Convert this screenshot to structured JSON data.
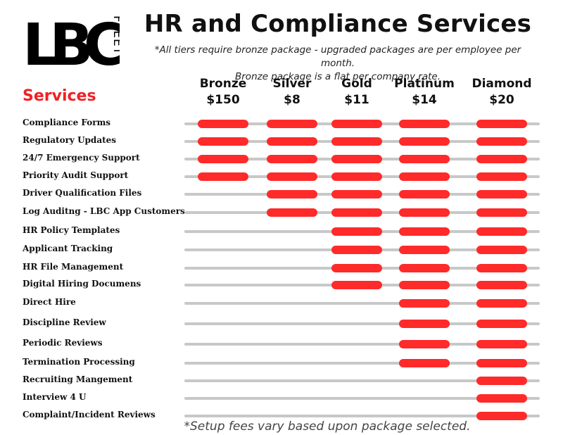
{
  "brand": {
    "logo_text": "LBC",
    "logo_subtext": "FLEET",
    "colors": {
      "accent": "#ee2226",
      "bar": "#ff2a2a",
      "track": "#c8c8c8",
      "logo_black": "#000000"
    }
  },
  "header": {
    "title": "HR and Compliance Services",
    "subtitle_line1": "*All tiers require bronze package - upgraded packages are per employee per month.",
    "subtitle_line2": "Bronze package is a flat per company rate."
  },
  "services_heading": "Services",
  "tiers": [
    {
      "name": "Bronze",
      "price": "$150"
    },
    {
      "name": "Silver",
      "price": "$8"
    },
    {
      "name": "Gold",
      "price": "$11"
    },
    {
      "name": "Platinum",
      "price": "$14"
    },
    {
      "name": "Diamond",
      "price": "$20"
    }
  ],
  "services": [
    {
      "label": "Compliance Forms",
      "tiers_included": [
        true,
        true,
        true,
        true,
        true
      ]
    },
    {
      "label": "Regulatory Updates",
      "tiers_included": [
        true,
        true,
        true,
        true,
        true
      ]
    },
    {
      "label": "24/7 Emergency Support",
      "tiers_included": [
        true,
        true,
        true,
        true,
        true
      ]
    },
    {
      "label": "Priority Audit Support",
      "tiers_included": [
        true,
        true,
        true,
        true,
        true
      ]
    },
    {
      "label": "Driver Qualification Files",
      "tiers_included": [
        false,
        true,
        true,
        true,
        true
      ]
    },
    {
      "label": "Log Auditng - LBC App Customers",
      "tiers_included": [
        false,
        true,
        true,
        true,
        true
      ]
    },
    {
      "label": "HR Policy Templates",
      "tiers_included": [
        false,
        false,
        true,
        true,
        true
      ]
    },
    {
      "label": "Applicant Tracking",
      "tiers_included": [
        false,
        false,
        true,
        true,
        true
      ]
    },
    {
      "label": "HR File Management",
      "tiers_included": [
        false,
        false,
        true,
        true,
        true
      ]
    },
    {
      "label": "Digital Hiring Documens",
      "tiers_included": [
        false,
        false,
        true,
        true,
        true
      ]
    },
    {
      "label": "Direct Hire",
      "tiers_included": [
        false,
        false,
        false,
        true,
        true
      ]
    },
    {
      "label": "Discipline Review",
      "tiers_included": [
        false,
        false,
        false,
        true,
        true
      ]
    },
    {
      "label": "Periodic Reviews",
      "tiers_included": [
        false,
        false,
        false,
        true,
        true
      ]
    },
    {
      "label": "Termination Processing",
      "tiers_included": [
        false,
        false,
        false,
        true,
        true
      ]
    },
    {
      "label": "Recruiting Mangement",
      "tiers_included": [
        false,
        false,
        false,
        false,
        true
      ]
    },
    {
      "label": "Interview 4 U",
      "tiers_included": [
        false,
        false,
        false,
        false,
        true
      ]
    },
    {
      "label": "Complaint/Incident Reviews",
      "tiers_included": [
        false,
        false,
        false,
        false,
        true
      ]
    }
  ],
  "footnote": "*Setup fees vary based upon package selected."
}
